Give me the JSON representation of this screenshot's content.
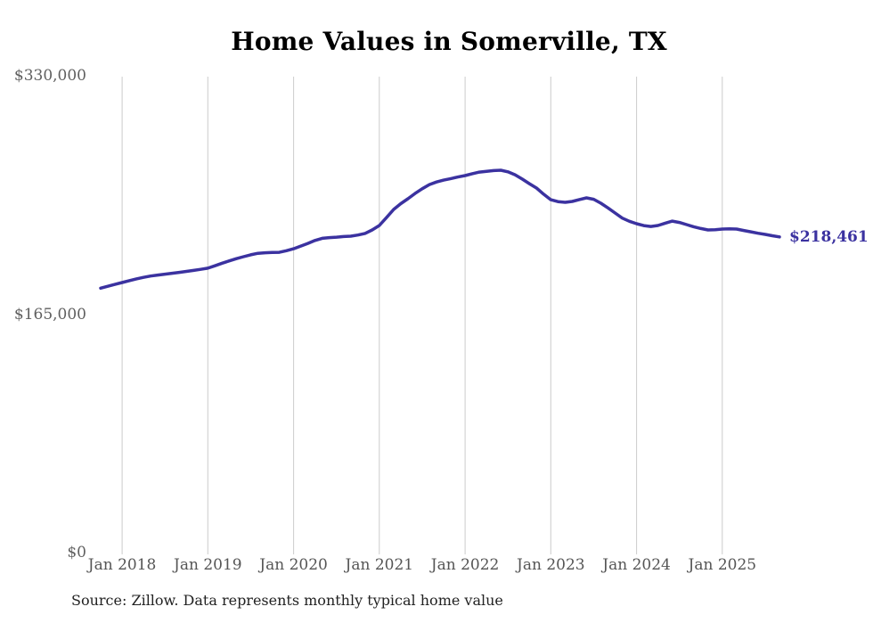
{
  "source_note": "Source: Zillow. Data represents monthly typical home value",
  "colors": {
    "line": "#3b32a0",
    "end_label": "#3b32a0",
    "title": "#000000",
    "axis_label": "#606060",
    "gridline": "#cccccc",
    "source_text": "#222222",
    "background": "#ffffff"
  },
  "chart_data": {
    "type": "line",
    "title": "Home Values in Somerville, TX",
    "xlabel": "",
    "ylabel": "",
    "ylim": [
      0,
      330000
    ],
    "grid": "vertical",
    "legend": "none",
    "end_label": "$218,461",
    "end_value": 218461,
    "y_ticks": [
      {
        "value": 0,
        "label": "$0"
      },
      {
        "value": 165000,
        "label": "$165,000"
      },
      {
        "value": 330000,
        "label": "$330,000"
      }
    ],
    "x_ticks": [
      {
        "x": "2018-01",
        "label": "Jan 2018"
      },
      {
        "x": "2019-01",
        "label": "Jan 2019"
      },
      {
        "x": "2020-01",
        "label": "Jan 2020"
      },
      {
        "x": "2021-01",
        "label": "Jan 2021"
      },
      {
        "x": "2022-01",
        "label": "Jan 2022"
      },
      {
        "x": "2023-01",
        "label": "Jan 2023"
      },
      {
        "x": "2024-01",
        "label": "Jan 2024"
      },
      {
        "x": "2025-01",
        "label": "Jan 2025"
      }
    ],
    "x": [
      "2017-10",
      "2017-11",
      "2017-12",
      "2018-01",
      "2018-02",
      "2018-03",
      "2018-04",
      "2018-05",
      "2018-06",
      "2018-07",
      "2018-08",
      "2018-09",
      "2018-10",
      "2018-11",
      "2018-12",
      "2019-01",
      "2019-02",
      "2019-03",
      "2019-04",
      "2019-05",
      "2019-06",
      "2019-07",
      "2019-08",
      "2019-09",
      "2019-10",
      "2019-11",
      "2019-12",
      "2020-01",
      "2020-02",
      "2020-03",
      "2020-04",
      "2020-05",
      "2020-06",
      "2020-07",
      "2020-08",
      "2020-09",
      "2020-10",
      "2020-11",
      "2020-12",
      "2021-01",
      "2021-02",
      "2021-03",
      "2021-04",
      "2021-05",
      "2021-06",
      "2021-07",
      "2021-08",
      "2021-09",
      "2021-10",
      "2021-11",
      "2021-12",
      "2022-01",
      "2022-02",
      "2022-03",
      "2022-04",
      "2022-05",
      "2022-06",
      "2022-07",
      "2022-08",
      "2022-09",
      "2022-10",
      "2022-11",
      "2022-12",
      "2023-01",
      "2023-02",
      "2023-03",
      "2023-04",
      "2023-05",
      "2023-06",
      "2023-07",
      "2023-08",
      "2023-09",
      "2023-10",
      "2023-11",
      "2023-12",
      "2024-01",
      "2024-02",
      "2024-03",
      "2024-04",
      "2024-05",
      "2024-06",
      "2024-07",
      "2024-08",
      "2024-09",
      "2024-10",
      "2024-11",
      "2024-12",
      "2025-01",
      "2025-02",
      "2025-03",
      "2025-04",
      "2025-05",
      "2025-06",
      "2025-07",
      "2025-08",
      "2025-09"
    ],
    "values": [
      183000,
      184300,
      185600,
      186900,
      188200,
      189400,
      190500,
      191400,
      192100,
      192700,
      193300,
      193900,
      194600,
      195300,
      196000,
      196800,
      198500,
      200300,
      201900,
      203400,
      204800,
      206100,
      207100,
      207500,
      207700,
      207800,
      208900,
      210300,
      212100,
      214000,
      216000,
      217500,
      218000,
      218300,
      218700,
      219000,
      219800,
      220900,
      223300,
      226400,
      231800,
      237500,
      241500,
      244900,
      248500,
      251800,
      254700,
      256500,
      257800,
      258800,
      259900,
      260900,
      262200,
      263300,
      263900,
      264400,
      264600,
      263500,
      261500,
      258500,
      255300,
      252300,
      248000,
      244200,
      242900,
      242400,
      243000,
      244300,
      245500,
      244500,
      241800,
      238500,
      235000,
      231500,
      229300,
      227600,
      226300,
      225700,
      226400,
      228000,
      229400,
      228500,
      227000,
      225500,
      224300,
      223300,
      223500,
      223900,
      224000,
      223900,
      222900,
      222000,
      221000,
      220200,
      219300,
      218461
    ]
  }
}
